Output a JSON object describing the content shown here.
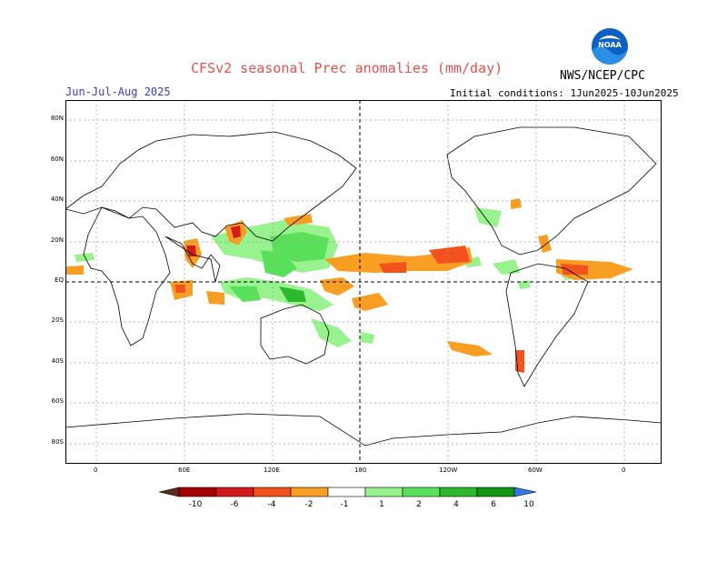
{
  "header": {
    "title": "CFSv2 seasonal Prec anomalies (mm/day)",
    "season": "Jun-Jul-Aug 2025",
    "initial_conditions": "Initial conditions: 1Jun2025-10Jun2025",
    "agency": "NWS/NCEP/CPC",
    "logo_text": "NOAA"
  },
  "map": {
    "lat_labels": [
      "80N",
      "60N",
      "40N",
      "20N",
      "EQ",
      "20S",
      "40S",
      "60S",
      "80S"
    ],
    "lon_labels": [
      "0",
      "60E",
      "120E",
      "180",
      "120W",
      "60W",
      "0"
    ]
  },
  "legend": {
    "levels": [
      "-10",
      "-6",
      "-4",
      "-2",
      "-1",
      "1",
      "2",
      "4",
      "6",
      "10"
    ],
    "colors": {
      "below_-10": "#5c2b1e",
      "-10_-6": "#a50000",
      "-6_-4": "#d21a1a",
      "-4_-2": "#f2521d",
      "-2_-1": "#f89e22",
      "-1_1": "#ffffff",
      "1_2": "#98f28e",
      "2_4": "#5ae05a",
      "4_6": "#2db82d",
      "6_10": "#129612",
      "above_10": "#2f79e8"
    }
  }
}
